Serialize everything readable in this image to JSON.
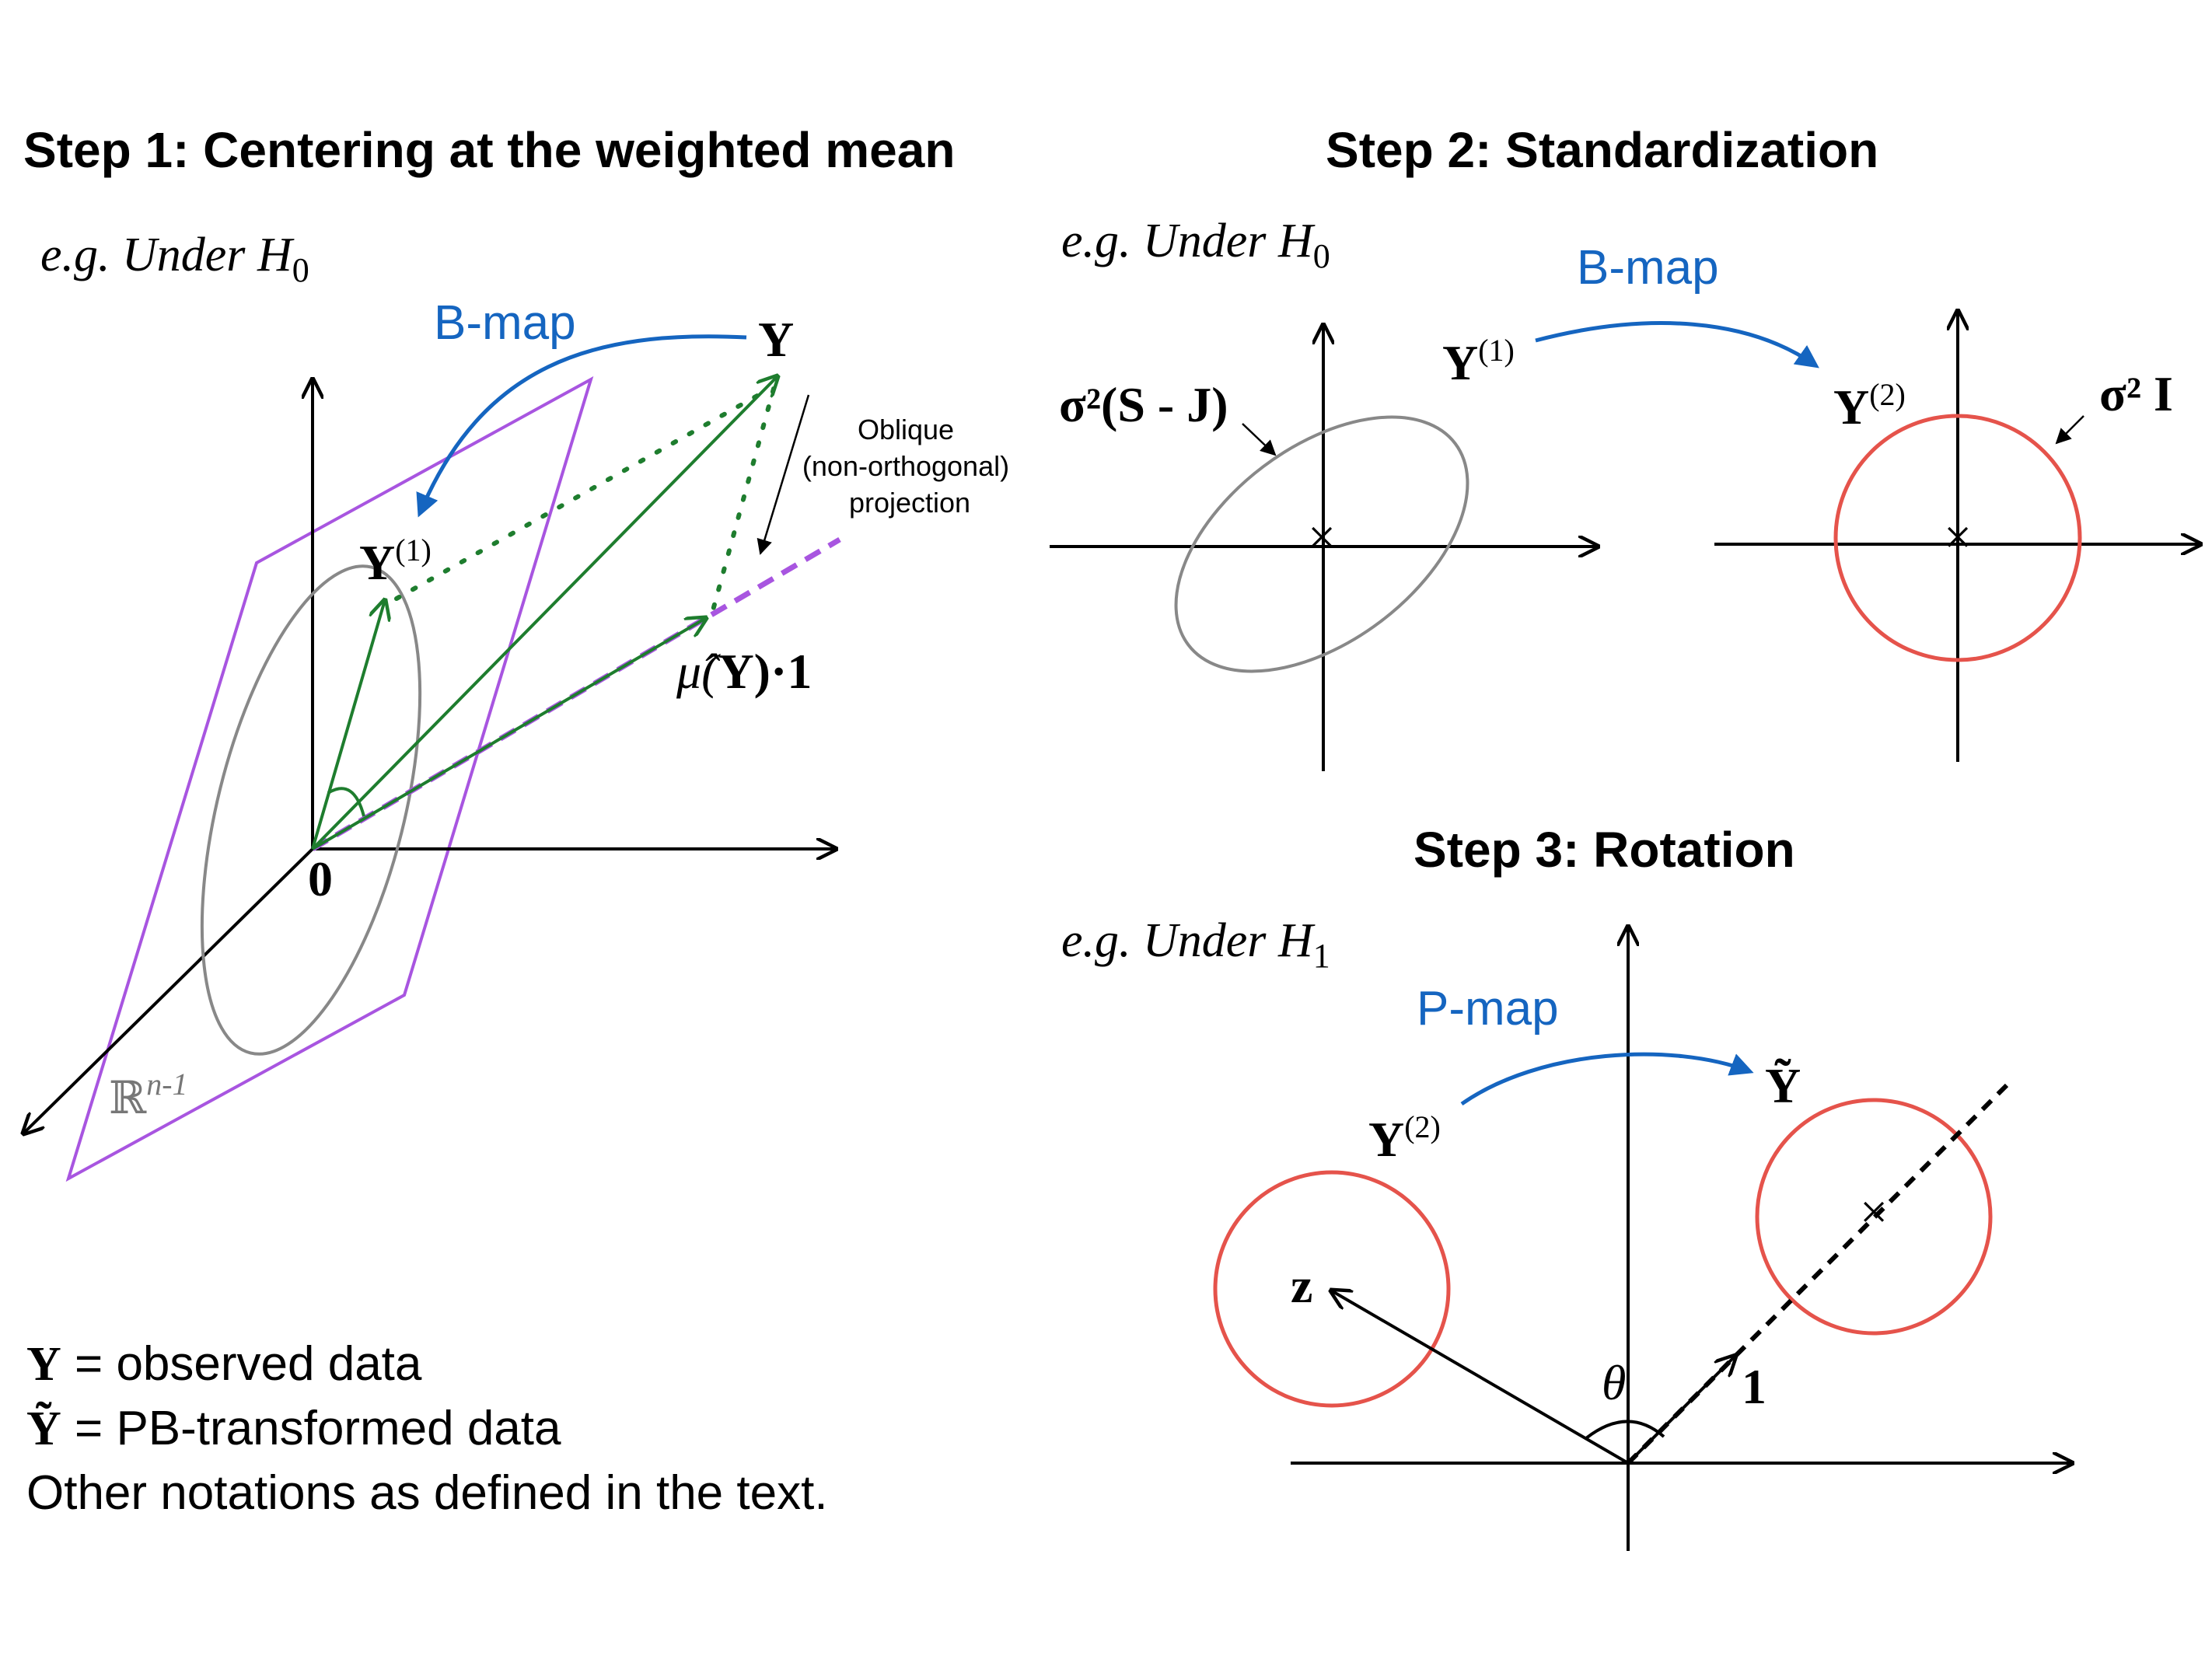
{
  "step1": {
    "title": "Step 1: Centering at the weighted mean",
    "condition": "e.g. Under H",
    "condition_sub": "0",
    "map_label": "B-map",
    "y_label": "Y",
    "y1_label": "Y",
    "y1_sup": "(1)",
    "origin_label": "0",
    "mu_label_pre": "μ̂(",
    "mu_label_y": "Y",
    "mu_label_post": ")·1",
    "space_label": "ℝ",
    "space_sup": "n-1",
    "projection_note": [
      "Oblique",
      "(non-orthogonal)",
      "projection"
    ]
  },
  "step2": {
    "title": "Step 2: Standardization",
    "condition": "e.g. Under H",
    "condition_sub": "0",
    "map_label": "B-map",
    "y1_label": "Y",
    "y1_sup": "(1)",
    "y2_label": "Y",
    "y2_sup": "(2)",
    "cov_left": "σ²(S - J)",
    "cov_right": "σ² I"
  },
  "step3": {
    "title": "Step 3: Rotation",
    "condition": "e.g. Under H",
    "condition_sub": "1",
    "map_label": "P-map",
    "y2_label": "Y",
    "y2_sup": "(2)",
    "ytilde_label": "Ỹ",
    "z_label": "z",
    "theta_label": "θ",
    "one_label": "1"
  },
  "legend": {
    "line1_sym": "Y",
    "line1_text": " = observed data",
    "line2_sym": "Ỹ",
    "line2_text": " = PB-transformed data",
    "line3_text": "Other notations as defined in the text."
  },
  "colors": {
    "map_arrow": "#1565C0",
    "plane": "#A855E0",
    "green_vector": "#1E7D2E",
    "ellipse_gray": "#888888",
    "circle_red": "#E5534B"
  }
}
